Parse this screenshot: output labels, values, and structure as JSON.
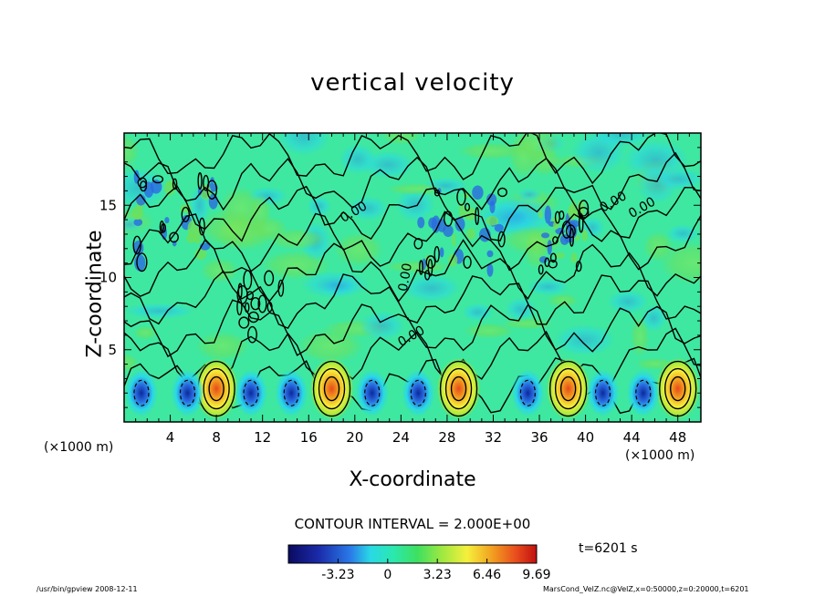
{
  "chart_data": {
    "type": "heatmap",
    "title": "vertical velocity",
    "xlabel": "X-coordinate",
    "ylabel": "Z-coordinate",
    "xunit_left": "(×1000 m)",
    "xunit_right": "(×1000 m)",
    "xlim": [
      0,
      50
    ],
    "ylim": [
      0,
      20
    ],
    "xticks": [
      4,
      8,
      12,
      16,
      20,
      24,
      28,
      32,
      36,
      40,
      44,
      48
    ],
    "yticks": [
      5,
      10,
      15
    ],
    "contour_interval_label": "CONTOUR INTERVAL = 2.000E+00",
    "contour_label": "0.00",
    "colorbar": {
      "ticks": [
        "-3.23",
        "0",
        "3.23",
        "6.46",
        "9.69"
      ],
      "min": -6.46,
      "max": 9.69
    },
    "updraft_x": [
      8,
      18,
      29,
      38.5,
      48
    ],
    "downdraft_x": [
      1.5,
      5.5,
      11,
      14.5,
      21.5,
      25.5,
      35,
      41.5,
      45
    ],
    "time_label": "t=6201 s",
    "footer_left": "/usr/bin/gpview   2008-12-11",
    "footer_right": "MarsCond_VelZ.nc@VelZ,x=0:50000,z=0:20000,t=6201",
    "colors": {
      "background": "#3ee8a0",
      "upper_green": "#6ee05a",
      "cyan": "#2ad8e6",
      "blue": "#2a6ae0",
      "yellow": "#f5f03c",
      "orange": "#f2a020",
      "red": "#e84a1c"
    }
  }
}
